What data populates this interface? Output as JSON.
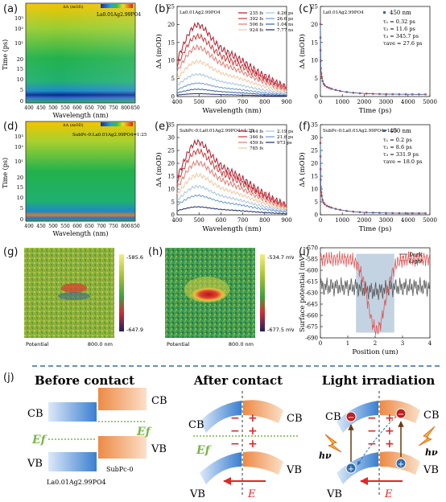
{
  "panel_labels": {
    "a": "(a)",
    "b": "(b)",
    "c": "(c)",
    "d": "(d)",
    "e": "(e)",
    "f": "(f)",
    "g": "(g)",
    "h": "(h)",
    "i": "(i)",
    "j": "(j)"
  },
  "colors": {
    "cb_blue": "#4f8fd6",
    "cb_orange": "#f0a56c",
    "ef_green": "#7ab648",
    "field_red": "#e32626"
  },
  "heatmap_a": {
    "sample": "La0.01Ag2.99PO4",
    "scale_label": "ΔA (mOD)",
    "xlabel": "Wavelength (nm)",
    "ylabel": "Time (ps)",
    "xticks": [
      "400",
      "450",
      "500",
      "550",
      "600",
      "650",
      "700",
      "750",
      "800",
      "850"
    ],
    "yticks": [
      "20",
      "15",
      "10",
      "5",
      "0"
    ],
    "ylog": [
      "10³",
      "10²",
      "10¹"
    ]
  },
  "heatmap_d": {
    "sample": "SubPc-0:La0.01Ag2.99PO4=1:25",
    "scale_label": "ΔA (mOD)",
    "xlabel": "Wavelength (nm)",
    "ylabel": "Time (ps)",
    "xticks": [
      "400",
      "450",
      "500",
      "550",
      "600",
      "650",
      "700",
      "750",
      "800",
      "850"
    ],
    "yticks": [
      "20",
      "15",
      "10",
      "5",
      "0"
    ],
    "ylog": [
      "10³",
      "10²",
      "10¹"
    ]
  },
  "chart_data": [
    {
      "type": "line",
      "id": "b",
      "title": "La0.01Ag2.99PO4",
      "xlabel": "Wavelength (nm)",
      "ylabel": "ΔA (mOD)",
      "xlim": [
        400,
        900
      ],
      "ylim": [
        0,
        25
      ],
      "xticks": [
        400,
        500,
        600,
        700,
        800,
        900
      ],
      "yticks": [
        0,
        5,
        10,
        15,
        20,
        25
      ],
      "series": [
        {
          "name": "235 fs",
          "peak": 22.5,
          "color": "#b2182b"
        },
        {
          "name": "392 fs",
          "peak": 19.0,
          "color": "#c93838"
        },
        {
          "name": "506 fs",
          "peak": 15.5,
          "color": "#e07a6f"
        },
        {
          "name": "924 fs",
          "peak": 11.0,
          "color": "#f2c8a0"
        },
        {
          "name": "4.26 ps",
          "peak": 7.0,
          "color": "#a7c5e2"
        },
        {
          "name": "26.6 ps",
          "peak": 4.2,
          "color": "#6c9bd0"
        },
        {
          "name": "1.04 ns",
          "peak": 2.3,
          "color": "#3b5fa8"
        },
        {
          "name": "7.77 ns",
          "peak": 0.9,
          "color": "#1c2b66"
        }
      ]
    },
    {
      "type": "scatter",
      "id": "c",
      "title": "La0.01Ag2.99PO4",
      "xlabel": "Time (ps)",
      "ylabel": "ΔA (mOD)",
      "xlim": [
        0,
        5000
      ],
      "ylim": [
        0,
        25
      ],
      "xticks": [
        0,
        1000,
        2000,
        3000,
        4000,
        5000
      ],
      "yticks": [
        0,
        5,
        10,
        15,
        20,
        25
      ],
      "legend": "450 nm",
      "fit": [
        "τ₁ = 0.32 ps",
        "τ₂ = 11.6 ps",
        "τ₃ = 345.7 ps",
        "τave = 27.6 ps"
      ]
    },
    {
      "type": "line",
      "id": "e",
      "title": "SubPc-0:La0.01Ag2.99PO4=1:25",
      "xlabel": "Wavelength (nm)",
      "ylabel": "ΔA (mOD)",
      "xlim": [
        400,
        900
      ],
      "ylim": [
        0,
        35
      ],
      "xticks": [
        400,
        500,
        600,
        700,
        800,
        900
      ],
      "yticks": [
        0,
        5,
        10,
        15,
        20,
        25,
        30,
        35
      ],
      "series": [
        {
          "name": "244 fs",
          "peak": 32.0,
          "color": "#b2182b"
        },
        {
          "name": "346 fs",
          "peak": 28.0,
          "color": "#c93838"
        },
        {
          "name": "459 fs",
          "peak": 23.0,
          "color": "#e07a6f"
        },
        {
          "name": "785 fs",
          "peak": 17.5,
          "color": "#f2c8a0"
        },
        {
          "name": "2.19 ps",
          "peak": 12.5,
          "color": "#a7c5e2"
        },
        {
          "name": "21.6 ps",
          "peak": 8.5,
          "color": "#6c9bd0"
        },
        {
          "name": "973 ps",
          "peak": 3.5,
          "color": "#1c2b66"
        }
      ]
    },
    {
      "type": "scatter",
      "id": "f",
      "title": "SubPc-0:La0.01Ag2.99PO4=1:25",
      "xlabel": "Time (ps)",
      "ylabel": "ΔA (mOD)",
      "xlim": [
        0,
        5000
      ],
      "ylim": [
        0,
        35
      ],
      "xticks": [
        0,
        1000,
        2000,
        3000,
        4000,
        5000
      ],
      "yticks": [
        0,
        5,
        10,
        15,
        20,
        25,
        30,
        35
      ],
      "legend": "450 nm",
      "fit": [
        "τ₁ = 0.2 ps",
        "τ₂ = 8.6 ps",
        "τ₃ = 331.9 ps",
        "τave = 18.0 ps"
      ]
    },
    {
      "type": "line",
      "id": "i",
      "xlabel": "Position (um)",
      "ylabel": "Surface potential (mV)",
      "xlim": [
        0,
        4
      ],
      "ylim": [
        -690,
        -570
      ],
      "xticks": [
        0,
        1,
        2,
        3,
        4
      ],
      "yticks": [
        -570,
        -585,
        -600,
        -615,
        -630,
        -645,
        -660,
        -675,
        -690
      ],
      "series": [
        {
          "name": "Dark",
          "color": "#555555"
        },
        {
          "name": "Light",
          "color": "#e05555"
        }
      ]
    }
  ],
  "kpfm_g": {
    "scale_max": "-585.6 mV",
    "scale_min": "-647.9 mV",
    "caption_left": "Potential",
    "caption_right": "800.0 nm"
  },
  "kpfm_h": {
    "scale_max": "-534.7 mV",
    "scale_min": "-677.5 mV",
    "caption_left": "Potential",
    "caption_right": "800.0 nm"
  },
  "diagram": {
    "before": "Before contact",
    "after": "After contact",
    "light": "Light irradiation",
    "cb": "CB",
    "vb": "VB",
    "ef": "Ef",
    "e_field": "E",
    "hv": "hν",
    "material1": "La0.01Ag2.99PO4",
    "material2": "SubPc-0"
  }
}
